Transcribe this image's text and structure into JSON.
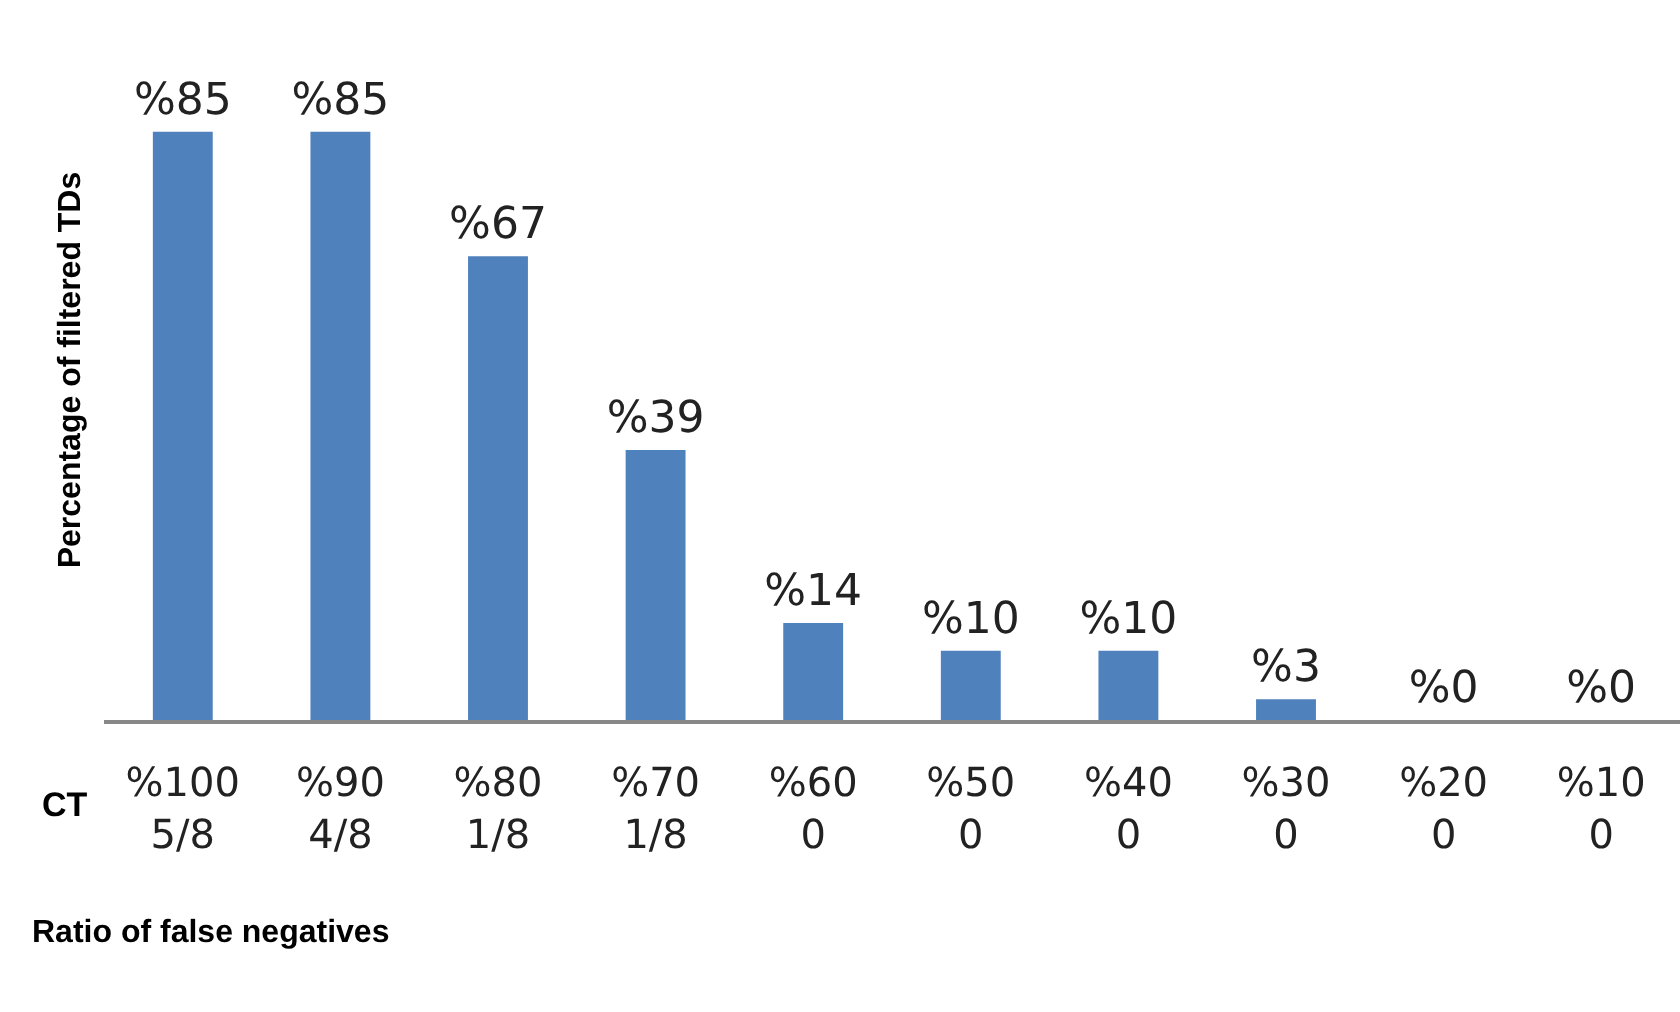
{
  "chart_data": {
    "type": "bar",
    "xlabel": "Ratio of false negatives",
    "ylabel": "Percentage of filtered TDs",
    "categories": [
      "%100\n5/8",
      "%90\n4/8",
      "%80\n1/8",
      "%70\n1/8",
      "%60\n0",
      "%50\n0",
      "%40\n0",
      "%30\n0",
      "%20\n0",
      "%10\n0"
    ],
    "values": [
      85,
      85,
      67,
      39,
      14,
      10,
      10,
      3,
      0,
      0
    ],
    "value_labels": [
      "%85",
      "%85",
      "%67",
      "%39",
      "%14",
      "%10",
      "%10",
      "%3",
      "%0",
      "%0"
    ],
    "color": "#4f81bd",
    "annotations": [
      "CT"
    ]
  }
}
